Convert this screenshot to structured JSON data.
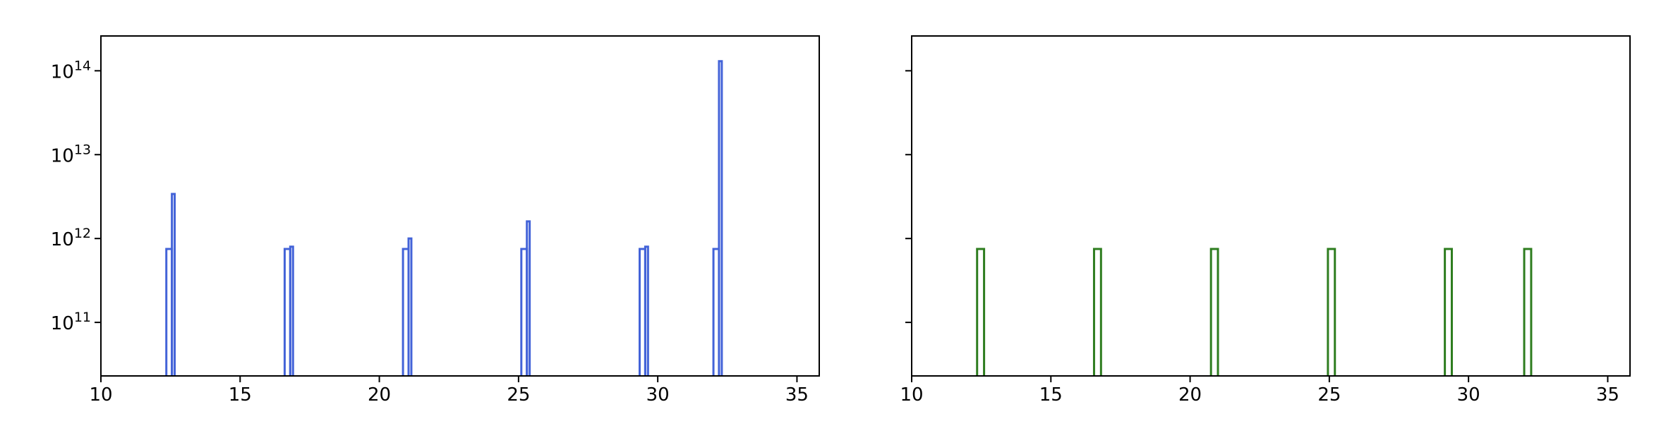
{
  "chart_data": [
    {
      "type": "histogram-step",
      "title": "",
      "xlabel": "",
      "ylabel": "",
      "xscale": "linear",
      "yscale": "log",
      "xlim": [
        10,
        35.8
      ],
      "ylim": [
        23000000000.0,
        260000000000000.0
      ],
      "xticks": [
        10,
        15,
        20,
        25,
        30,
        35
      ],
      "yticks": [
        {
          "value": 100000000000.0,
          "base": "10",
          "exp": "11"
        },
        {
          "value": 1000000000000.0,
          "base": "10",
          "exp": "12"
        },
        {
          "value": 10000000000000.0,
          "base": "10",
          "exp": "13"
        },
        {
          "value": 100000000000000.0,
          "base": "10",
          "exp": "14"
        }
      ],
      "show_ytick_labels": true,
      "grid": false,
      "color": "#4363d8",
      "bins": [
        {
          "x0": 12.35,
          "x1": 12.55,
          "y": 750000000000.0
        },
        {
          "x0": 12.55,
          "x1": 12.65,
          "y": 3400000000000.0
        },
        {
          "x0": 16.6,
          "x1": 16.8,
          "y": 750000000000.0
        },
        {
          "x0": 16.8,
          "x1": 16.9,
          "y": 800000000000.0
        },
        {
          "x0": 20.85,
          "x1": 21.05,
          "y": 750000000000.0
        },
        {
          "x0": 21.05,
          "x1": 21.15,
          "y": 1000000000000.0
        },
        {
          "x0": 25.1,
          "x1": 25.3,
          "y": 750000000000.0
        },
        {
          "x0": 25.3,
          "x1": 25.4,
          "y": 1600000000000.0
        },
        {
          "x0": 29.35,
          "x1": 29.55,
          "y": 750000000000.0
        },
        {
          "x0": 29.55,
          "x1": 29.65,
          "y": 800000000000.0
        },
        {
          "x0": 32.0,
          "x1": 32.2,
          "y": 750000000000.0
        },
        {
          "x0": 32.2,
          "x1": 32.3,
          "y": 130000000000000.0
        }
      ]
    },
    {
      "type": "histogram-step",
      "title": "",
      "xlabel": "",
      "ylabel": "",
      "xscale": "linear",
      "yscale": "log",
      "xlim": [
        10,
        35.8
      ],
      "ylim": [
        23000000000.0,
        260000000000000.0
      ],
      "xticks": [
        10,
        15,
        20,
        25,
        30,
        35
      ],
      "yticks": [
        {
          "value": 100000000000.0
        },
        {
          "value": 1000000000000.0
        },
        {
          "value": 10000000000000.0
        },
        {
          "value": 100000000000000.0
        }
      ],
      "show_ytick_labels": false,
      "grid": false,
      "color": "#2e7d1f",
      "bins": [
        {
          "x0": 12.35,
          "x1": 12.6,
          "y": 750000000000.0
        },
        {
          "x0": 16.55,
          "x1": 16.8,
          "y": 750000000000.0
        },
        {
          "x0": 20.75,
          "x1": 21.0,
          "y": 750000000000.0
        },
        {
          "x0": 24.95,
          "x1": 25.2,
          "y": 750000000000.0
        },
        {
          "x0": 29.15,
          "x1": 29.4,
          "y": 750000000000.0
        },
        {
          "x0": 32.0,
          "x1": 32.25,
          "y": 750000000000.0
        }
      ]
    }
  ]
}
